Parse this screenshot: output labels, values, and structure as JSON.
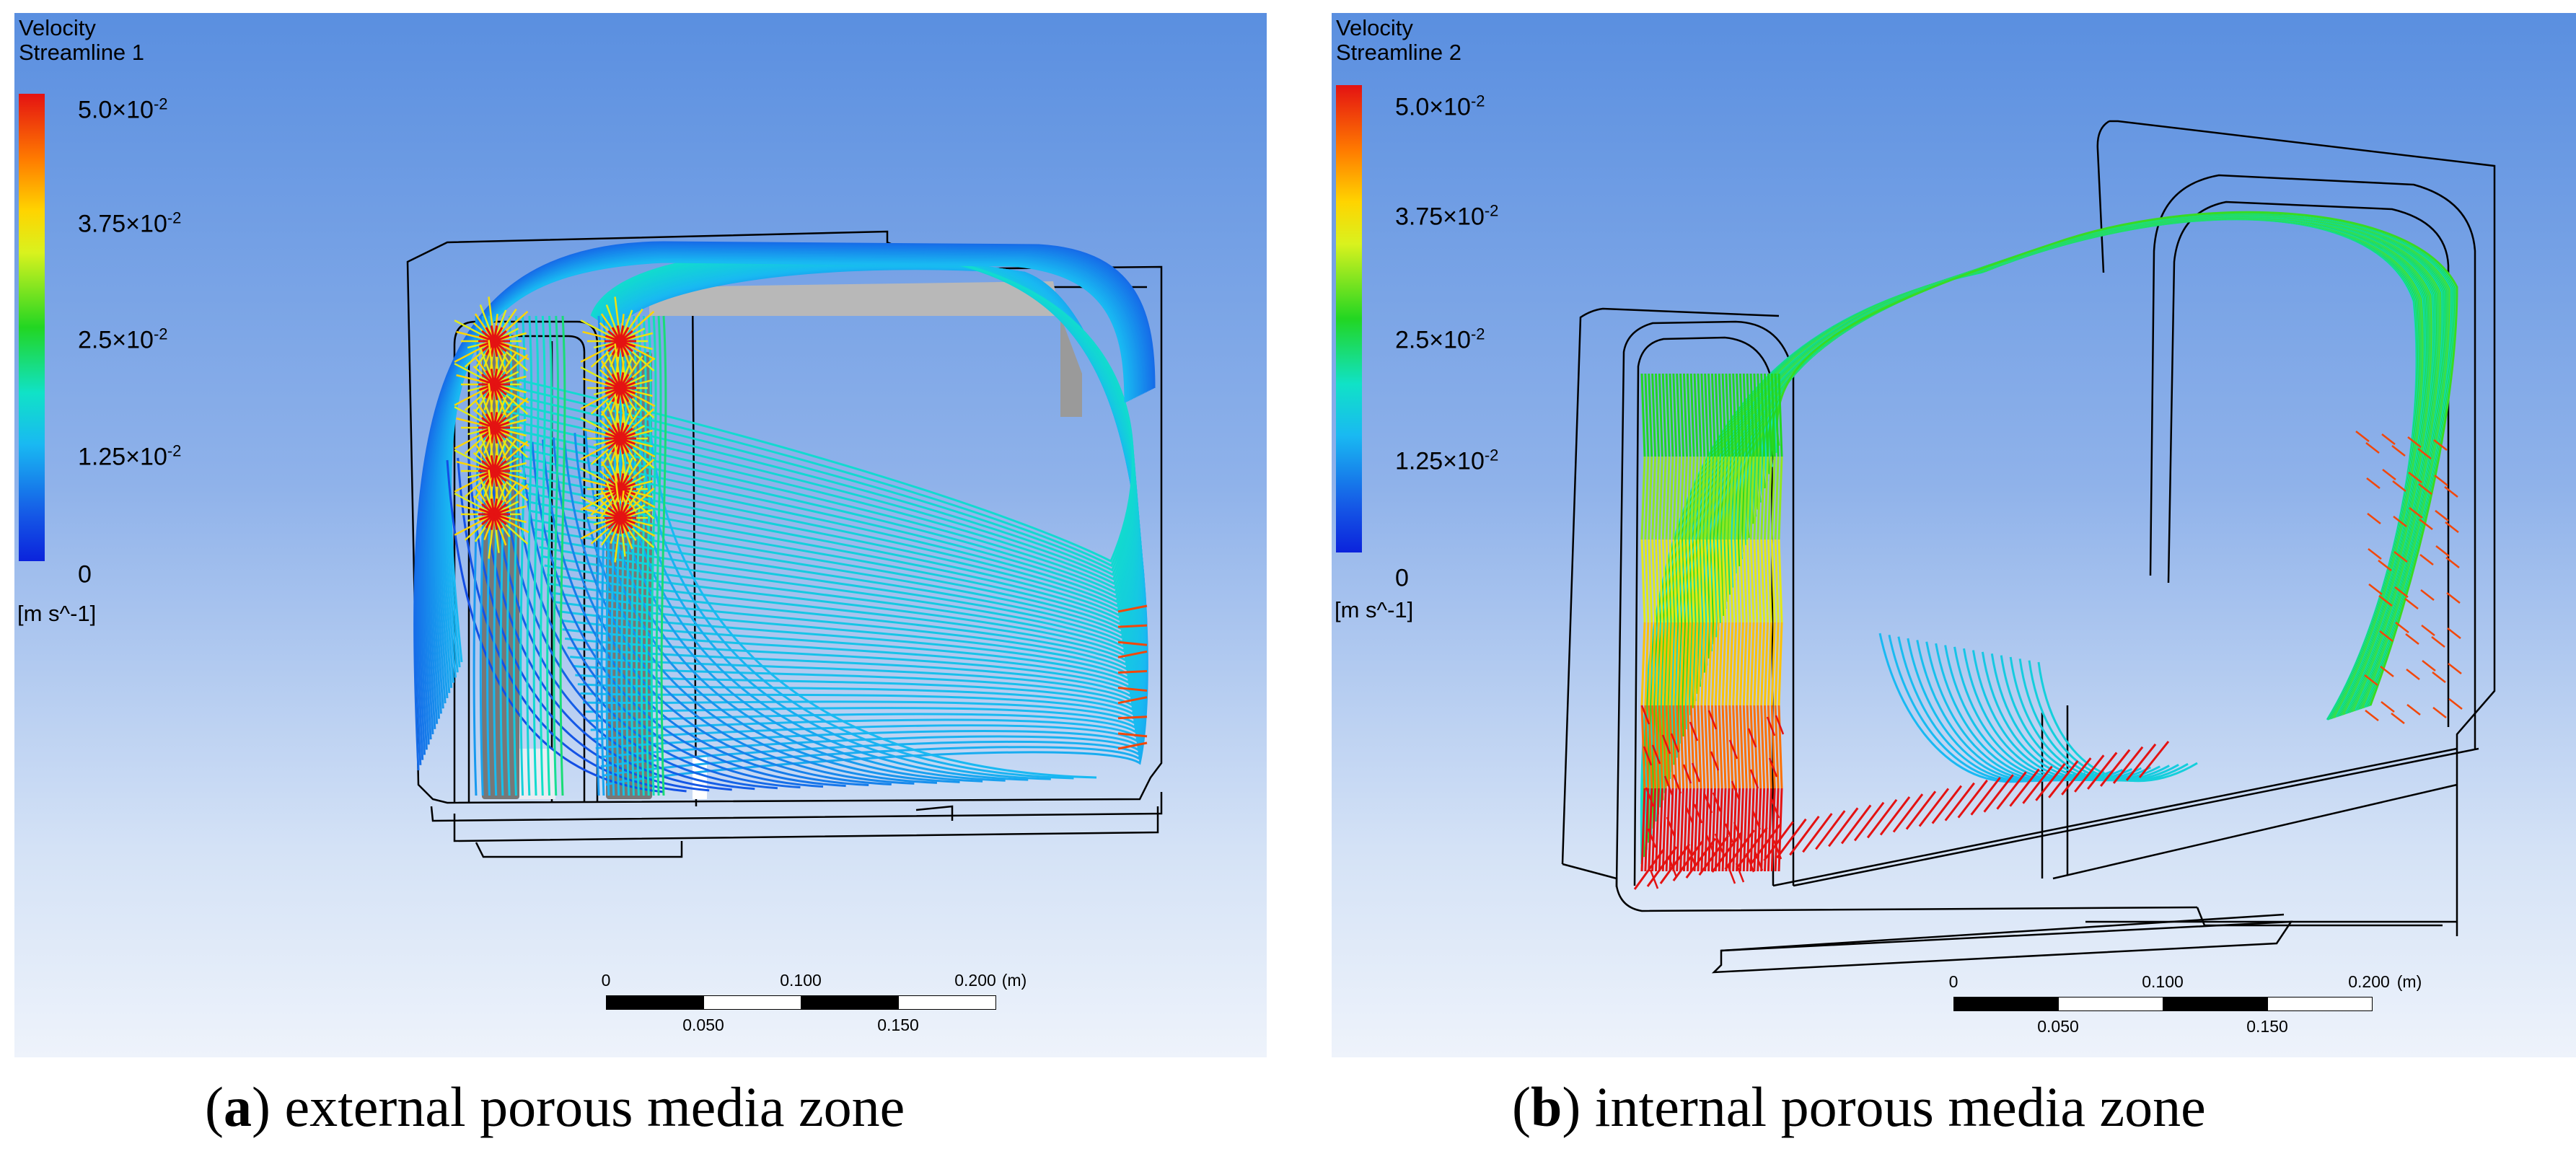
{
  "figures": [
    {
      "id": "a",
      "legend": {
        "quantity": "Velocity",
        "object": "Streamline 1",
        "ticks": [
          {
            "mantissa": "5.0×10",
            "exponent": "-2",
            "value": 0.05
          },
          {
            "mantissa": "3.75×10",
            "exponent": "-2",
            "value": 0.0375
          },
          {
            "mantissa": "2.5×10",
            "exponent": "-2",
            "value": 0.025
          },
          {
            "mantissa": "1.25×10",
            "exponent": "-2",
            "value": 0.0125
          },
          {
            "mantissa": "0",
            "exponent": "",
            "value": 0
          }
        ],
        "unit": "[m s^-1]"
      },
      "scale_bar": {
        "top_labels": [
          "0",
          "0.100",
          "0.200"
        ],
        "unit": "(m)",
        "bottom_labels": [
          "0.050",
          "0.150"
        ]
      },
      "caption": {
        "letter": "a",
        "text": " external porous media zone"
      }
    },
    {
      "id": "b",
      "legend": {
        "quantity": "Velocity",
        "object": "Streamline 2",
        "ticks": [
          {
            "mantissa": "5.0×10",
            "exponent": "-2",
            "value": 0.05
          },
          {
            "mantissa": "3.75×10",
            "exponent": "-2",
            "value": 0.0375
          },
          {
            "mantissa": "2.5×10",
            "exponent": "-2",
            "value": 0.025
          },
          {
            "mantissa": "1.25×10",
            "exponent": "-2",
            "value": 0.0125
          },
          {
            "mantissa": "0",
            "exponent": "",
            "value": 0
          }
        ],
        "unit": "[m s^-1]"
      },
      "scale_bar": {
        "top_labels": [
          "0",
          "0.100",
          "0.200"
        ],
        "unit": "(m)",
        "bottom_labels": [
          "0.050",
          "0.150"
        ]
      },
      "caption": {
        "letter": "b",
        "text": " internal porous media zone"
      }
    }
  ],
  "colors": {
    "max": "#e41212",
    "high": "#ffd400",
    "mid": "#22d622",
    "low": "#19b9f2",
    "min": "#0b23dc",
    "geometry": "#000000",
    "porous_media": "#7a7a7a"
  }
}
